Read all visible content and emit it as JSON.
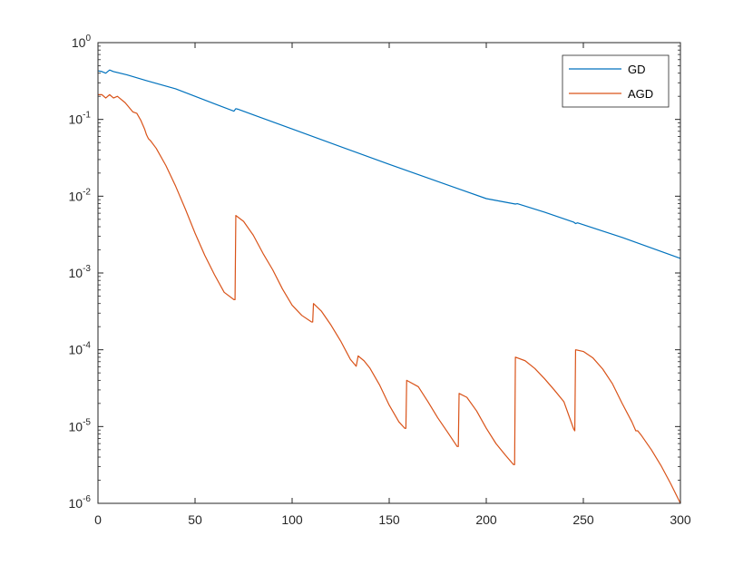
{
  "chart_data": {
    "type": "line",
    "title": "",
    "xlabel": "",
    "ylabel": "",
    "xlim": [
      0,
      300
    ],
    "ylim": [
      1e-06,
      1
    ],
    "yscale": "log",
    "grid": false,
    "legend_position": "top-right",
    "x_ticks": [
      0,
      50,
      100,
      150,
      200,
      250,
      300
    ],
    "y_ticks": [
      {
        "base": "10",
        "exp": "-6",
        "value": 1e-06
      },
      {
        "base": "10",
        "exp": "-5",
        "value": 1e-05
      },
      {
        "base": "10",
        "exp": "-4",
        "value": 0.0001
      },
      {
        "base": "10",
        "exp": "-3",
        "value": 0.001
      },
      {
        "base": "10",
        "exp": "-2",
        "value": 0.01
      },
      {
        "base": "10",
        "exp": "-1",
        "value": 0.1
      },
      {
        "base": "10",
        "exp": "0",
        "value": 1
      }
    ],
    "series": [
      {
        "name": "GD",
        "color": "#0072BD",
        "x": [
          0,
          2,
          4,
          6,
          8,
          15,
          25,
          40,
          60,
          70,
          71,
          72,
          100,
          150,
          200,
          215,
          216,
          230,
          245,
          246,
          247,
          270,
          300
        ],
        "y": [
          0.43,
          0.42,
          0.4,
          0.44,
          0.42,
          0.38,
          0.32,
          0.25,
          0.16,
          0.128,
          0.138,
          0.136,
          0.075,
          0.026,
          0.0093,
          0.0079,
          0.008,
          0.0062,
          0.0046,
          0.0044,
          0.0045,
          0.0029,
          0.00155
        ]
      },
      {
        "name": "AGD",
        "color": "#D95319",
        "x": [
          0,
          2,
          4,
          6,
          8,
          10,
          14,
          18,
          20,
          22,
          24,
          25,
          26,
          27,
          30,
          35,
          40,
          45,
          50,
          55,
          60,
          65,
          70,
          70.6,
          71,
          75,
          80,
          85,
          90,
          95,
          100,
          105,
          110,
          110.6,
          111,
          115,
          120,
          125,
          130,
          133,
          134,
          137,
          140,
          145,
          150,
          155,
          158,
          158.6,
          159,
          165,
          170,
          175,
          180,
          185,
          185.6,
          186,
          190,
          195,
          200,
          205,
          210,
          214,
          214.6,
          215,
          220,
          225,
          230,
          235,
          240,
          245,
          245.6,
          246,
          250,
          255,
          260,
          265,
          270,
          275,
          277,
          278,
          280,
          285,
          290,
          295,
          300
        ],
        "y": [
          0.21,
          0.21,
          0.19,
          0.21,
          0.19,
          0.2,
          0.165,
          0.125,
          0.12,
          0.098,
          0.075,
          0.063,
          0.056,
          0.053,
          0.042,
          0.025,
          0.0135,
          0.0068,
          0.0033,
          0.0017,
          0.00095,
          0.00056,
          0.00045,
          0.00045,
          0.0056,
          0.0047,
          0.0031,
          0.0018,
          0.0011,
          0.00062,
          0.00038,
          0.00028,
          0.00023,
          0.00023,
          0.0004,
          0.00032,
          0.00021,
          0.00013,
          7.5e-05,
          6.1e-05,
          8.3e-05,
          7.2e-05,
          5.8e-05,
          3.5e-05,
          1.9e-05,
          1.15e-05,
          9.5e-06,
          9.5e-06,
          4e-05,
          3.3e-05,
          2.1e-05,
          1.3e-05,
          8.5e-06,
          5.5e-06,
          5.5e-06,
          2.7e-05,
          2.4e-05,
          1.6e-05,
          9.5e-06,
          6e-06,
          4.2e-06,
          3.2e-06,
          3.2e-06,
          8e-05,
          7.2e-05,
          5.7e-05,
          4.2e-05,
          3e-05,
          2.1e-05,
          9.3e-06,
          8.8e-06,
          0.0001,
          9.5e-05,
          7.8e-05,
          5.6e-05,
          3.6e-05,
          2e-05,
          1.15e-05,
          8.8e-06,
          8.8e-06,
          7.6e-06,
          5e-06,
          3.1e-06,
          1.8e-06,
          1e-06
        ]
      }
    ]
  }
}
